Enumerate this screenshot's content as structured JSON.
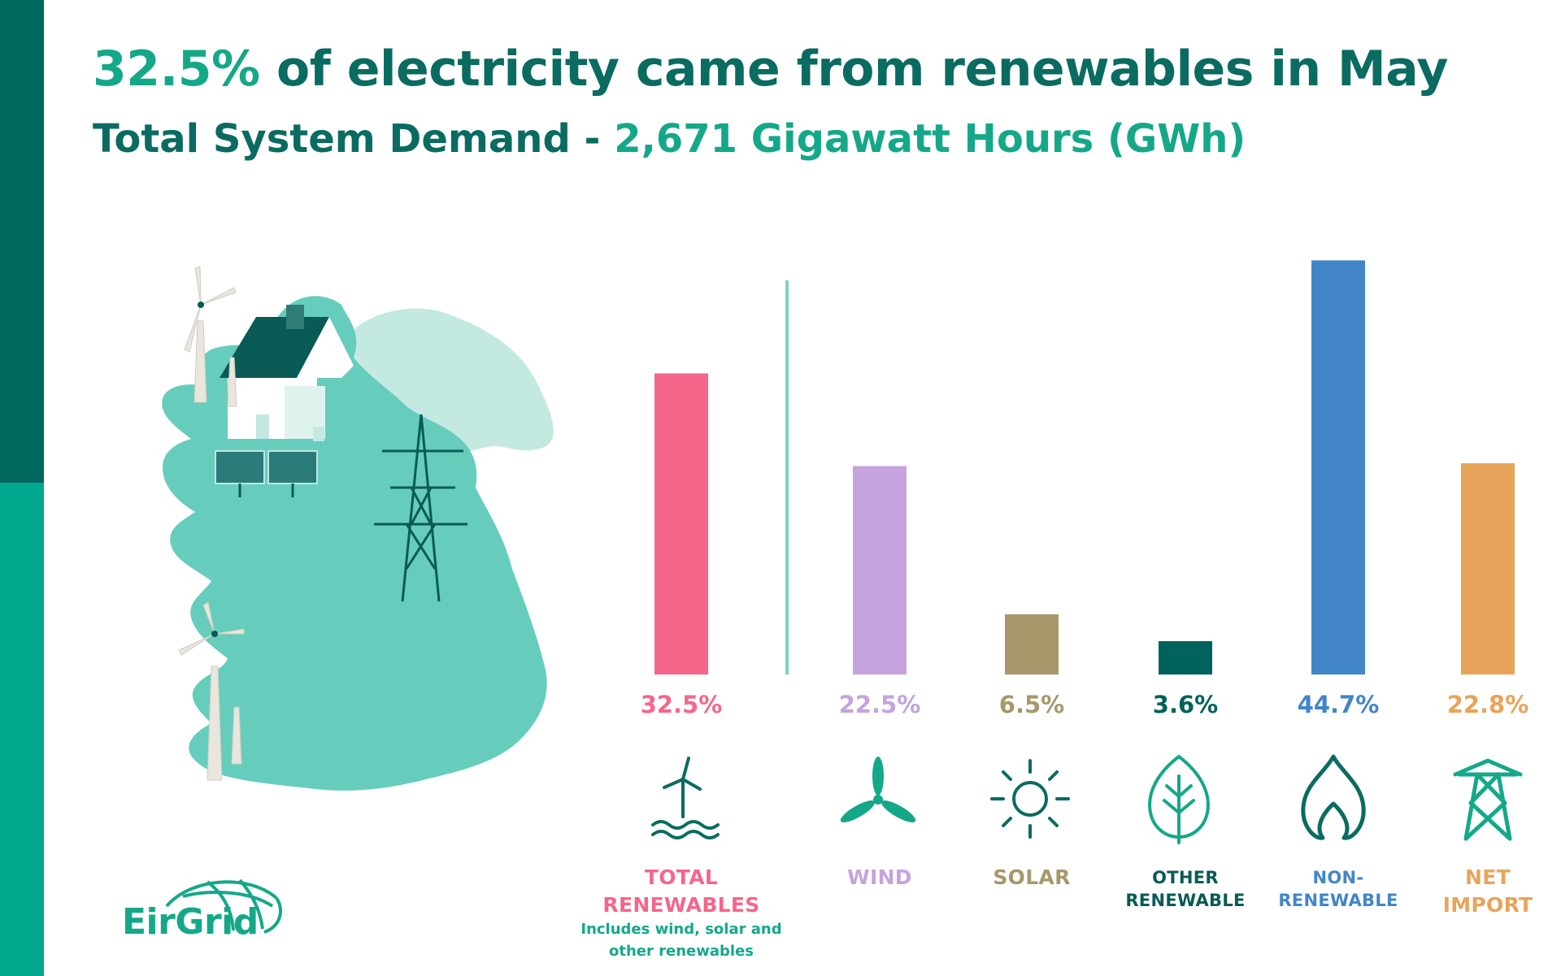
{
  "header": {
    "headline_pct": "32.5%",
    "headline_rest": " of electricity came from renewables in May",
    "subhead_prefix": "Total System Demand - ",
    "subhead_value": "2,671",
    "subhead_unit": " Gigawatt Hours (GWh)"
  },
  "logo": {
    "text": "EirGrid"
  },
  "colors": {
    "dark_teal": "#00675f",
    "teal": "#00a88e",
    "map_teal": "#66cdbd",
    "map_light": "#c3e9e1"
  },
  "chart_data": {
    "type": "bar",
    "unit": "%",
    "categories": [
      "TOTAL RENEWABLES",
      "WIND",
      "SOLAR",
      "OTHER RENEWABLE",
      "NON-RENEWABLE",
      "NET IMPORT"
    ],
    "values": [
      32.5,
      22.5,
      6.5,
      3.6,
      44.7,
      22.8
    ],
    "value_labels": [
      "32.5%",
      "22.5%",
      "6.5%",
      "3.6%",
      "44.7%",
      "22.8%"
    ],
    "label_lines": [
      [
        "TOTAL",
        "RENEWABLES"
      ],
      [
        "WIND"
      ],
      [
        "SOLAR"
      ],
      [
        "OTHER",
        "RENEWABLE"
      ],
      [
        "NON-RENEWABLE"
      ],
      [
        "NET",
        "IMPORT"
      ]
    ],
    "colors": [
      "#f5668a",
      "#c5a3dc",
      "#a6986a",
      "#00625d",
      "#4286c7",
      "#e8a45a"
    ],
    "label_colors": [
      "#f5668a",
      "#c5a3dc",
      "#a6986a",
      "#00625d",
      "#4286c7",
      "#e8a45a"
    ],
    "icons": [
      "offshore-wind-icon",
      "wind-turbine-icon",
      "sun-icon",
      "leaf-icon",
      "flame-icon",
      "pylon-icon"
    ],
    "note_lines": [
      "Includes wind, solar and",
      "other renewables"
    ],
    "grid": false,
    "legend": "none"
  }
}
